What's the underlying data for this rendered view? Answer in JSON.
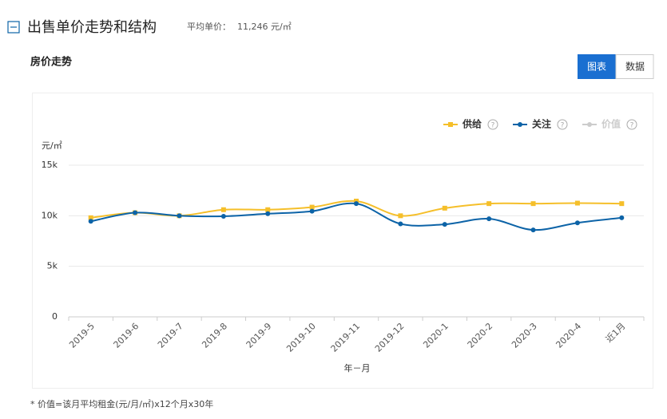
{
  "header": {
    "title": "出售单价走势和结构",
    "avg_label": "平均单价：",
    "avg_value": "11,246 元/㎡"
  },
  "section_title": "房价走势",
  "tabs": [
    "图表",
    "数据"
  ],
  "chart_data": {
    "type": "line",
    "y_unit": "元/㎡",
    "xlabel": "年－月",
    "categories": [
      "2019-5",
      "2019-6",
      "2019-7",
      "2019-8",
      "2019-9",
      "2019-10",
      "2019-11",
      "2019-12",
      "2020-1",
      "2020-2",
      "2020-3",
      "2020-4",
      "近1月"
    ],
    "series": [
      {
        "name": "供给",
        "color": "#f5bf2a",
        "values": [
          9800,
          10300,
          10000,
          10600,
          10600,
          10850,
          11450,
          10000,
          10750,
          11200,
          11200,
          11250,
          11200
        ]
      },
      {
        "name": "关注",
        "color": "#0c63a7",
        "values": [
          9450,
          10300,
          10000,
          9950,
          10200,
          10450,
          11200,
          9200,
          9150,
          9700,
          8600,
          9300,
          9800
        ]
      },
      {
        "name": "价值",
        "color": "#cccccc",
        "values": [
          null,
          null,
          null,
          null,
          null,
          null,
          null,
          null,
          null,
          null,
          null,
          null,
          null
        ]
      }
    ],
    "ylim": [
      0,
      15000
    ],
    "yticks": [
      0,
      {
        "value": 5000,
        "label": "5k"
      },
      {
        "value": 10000,
        "label": "10k"
      },
      {
        "value": 15000,
        "label": "15k"
      }
    ],
    "grid": true
  },
  "footnote": "* 价值=该月平均租金(元/月/㎡)x12个月x30年"
}
